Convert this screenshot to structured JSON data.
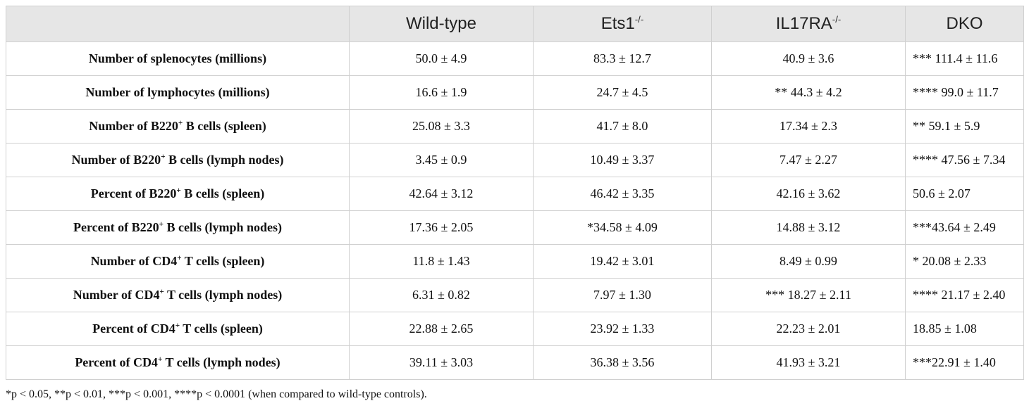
{
  "table": {
    "headers": {
      "blank": "",
      "wildtype": "Wild-type",
      "ets1": {
        "main": "Ets1",
        "sup": "-/-"
      },
      "il17ra": {
        "main": "IL17RA",
        "sup": "-/-"
      },
      "dko": "DKO"
    },
    "rows": [
      {
        "label": {
          "pre": "Number of splenocytes (millions)",
          "sup": "",
          "post": ""
        },
        "wt": "50.0 ± 4.9",
        "ets1": "83.3 ± 12.7",
        "il17ra": "40.9 ± 3.6",
        "dko": "*** 111.4 ± 11.6"
      },
      {
        "label": {
          "pre": "Number of lymphocytes (millions)",
          "sup": "",
          "post": ""
        },
        "wt": "16.6 ± 1.9",
        "ets1": "24.7 ± 4.5",
        "il17ra": "** 44.3 ± 4.2",
        "dko": "**** 99.0 ± 11.7"
      },
      {
        "label": {
          "pre": "Number of B220",
          "sup": "+",
          "post": " B cells (spleen)"
        },
        "wt": "25.08 ± 3.3",
        "ets1": "41.7 ± 8.0",
        "il17ra": "17.34 ± 2.3",
        "dko": "** 59.1 ± 5.9"
      },
      {
        "label": {
          "pre": "Number of B220",
          "sup": "+",
          "post": " B cells (lymph nodes)"
        },
        "wt": "3.45 ± 0.9",
        "ets1": "10.49 ± 3.37",
        "il17ra": "7.47 ± 2.27",
        "dko": "**** 47.56 ± 7.34"
      },
      {
        "label": {
          "pre": "Percent of B220",
          "sup": "+",
          "post": " B cells (spleen)"
        },
        "wt": "42.64 ± 3.12",
        "ets1": "46.42 ± 3.35",
        "il17ra": "42.16 ± 3.62",
        "dko": "50.6 ± 2.07"
      },
      {
        "label": {
          "pre": "Percent of B220",
          "sup": "+",
          "post": " B cells (lymph nodes)"
        },
        "wt": "17.36 ± 2.05",
        "ets1": "*34.58 ± 4.09",
        "il17ra": "14.88 ± 3.12",
        "dko": "***43.64 ± 2.49"
      },
      {
        "label": {
          "pre": "Number of CD4",
          "sup": "+",
          "post": " T cells (spleen)"
        },
        "wt": "11.8 ± 1.43",
        "ets1": "19.42 ± 3.01",
        "il17ra": "8.49 ± 0.99",
        "dko": "* 20.08 ± 2.33"
      },
      {
        "label": {
          "pre": "Number of CD4",
          "sup": "+",
          "post": " T cells (lymph nodes)"
        },
        "wt": "6.31 ± 0.82",
        "ets1": "7.97 ± 1.30",
        "il17ra": "*** 18.27 ± 2.11",
        "dko": "**** 21.17 ± 2.40"
      },
      {
        "label": {
          "pre": "Percent of CD4",
          "sup": "+",
          "post": " T cells (spleen)"
        },
        "wt": "22.88 ± 2.65",
        "ets1": "23.92 ± 1.33",
        "il17ra": "22.23 ± 2.01",
        "dko": "18.85 ± 1.08"
      },
      {
        "label": {
          "pre": "Percent of CD4",
          "sup": "+",
          "post": " T cells (lymph nodes)"
        },
        "wt": "39.11 ± 3.03",
        "ets1": "36.38 ± 3.56",
        "il17ra": "41.93 ± 3.21",
        "dko": "***22.91 ± 1.40"
      }
    ]
  },
  "footnote": "*p < 0.05, **p < 0.01, ***p < 0.001, ****p < 0.0001 (when compared to wild-type controls)."
}
